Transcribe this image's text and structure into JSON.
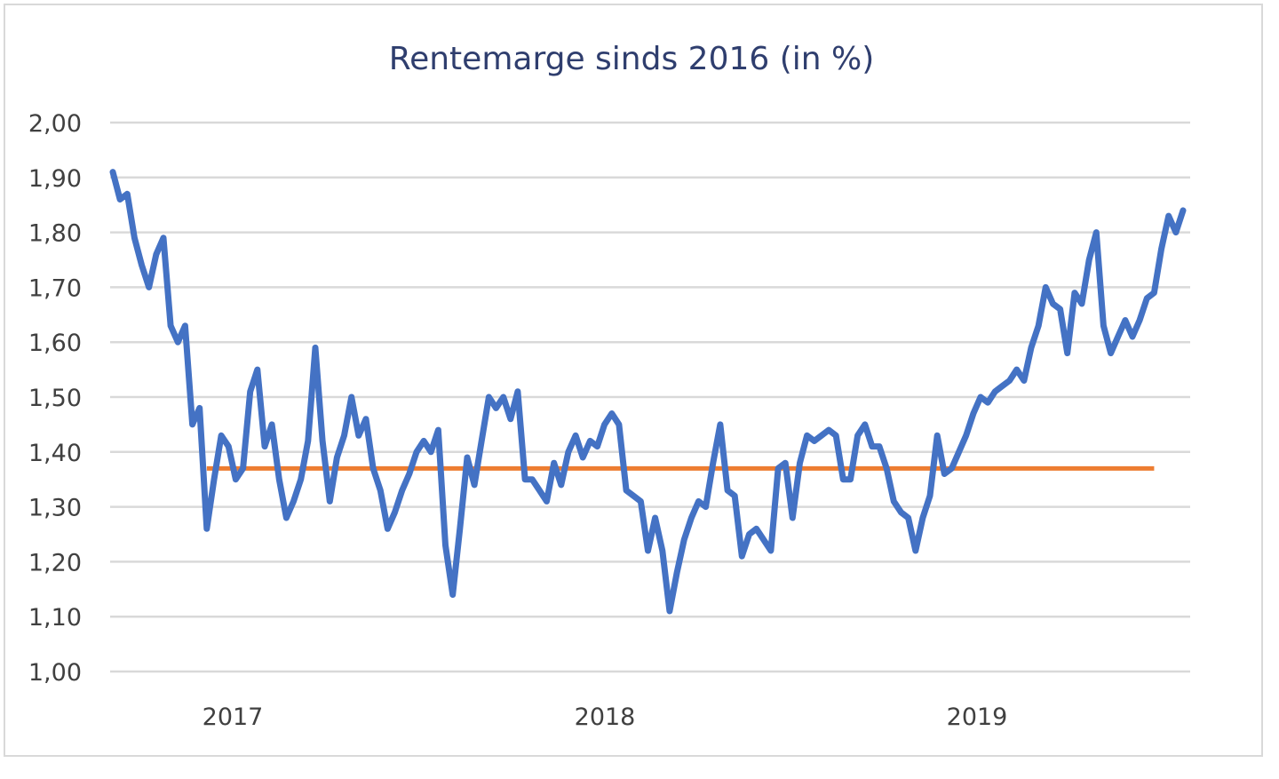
{
  "chart_data": {
    "type": "line",
    "title": "Rentemarge sinds 2016 (in %)",
    "xlabel": "",
    "ylabel": "",
    "ylim": [
      1.0,
      2.0
    ],
    "ytick_labels": [
      "1,00",
      "1,10",
      "1,20",
      "1,30",
      "1,40",
      "1,50",
      "1,60",
      "1,70",
      "1,80",
      "1,90",
      "2,00"
    ],
    "xtick_labels": [
      "2017",
      "2018",
      "2019"
    ],
    "grid": "horizontal",
    "legend": "none",
    "colors": {
      "series": "#4472c4",
      "reference": "#ed7d31",
      "grid": "#d9d9d9",
      "title": "#2f3e6e"
    },
    "series": [
      {
        "values": [
          1.91,
          1.86,
          1.87,
          1.79,
          1.74,
          1.7,
          1.76,
          1.79,
          1.63,
          1.6,
          1.63,
          1.45,
          1.48,
          1.26,
          1.35,
          1.43,
          1.41,
          1.35,
          1.37,
          1.51,
          1.55,
          1.41,
          1.45,
          1.35,
          1.28,
          1.31,
          1.35,
          1.42,
          1.59,
          1.42,
          1.31,
          1.39,
          1.43,
          1.5,
          1.43,
          1.46,
          1.37,
          1.33,
          1.26,
          1.29,
          1.33,
          1.36,
          1.4,
          1.42,
          1.4,
          1.44,
          1.23,
          1.14,
          1.26,
          1.39,
          1.34,
          1.42,
          1.5,
          1.48,
          1.5,
          1.46,
          1.51,
          1.35,
          1.35,
          1.33,
          1.31,
          1.38,
          1.34,
          1.4,
          1.43,
          1.39,
          1.42,
          1.41,
          1.45,
          1.47,
          1.45,
          1.33,
          1.32,
          1.31,
          1.22,
          1.28,
          1.22,
          1.11,
          1.18,
          1.24,
          1.28,
          1.31,
          1.3,
          1.38,
          1.45,
          1.33,
          1.32,
          1.21,
          1.25,
          1.26,
          1.24,
          1.22,
          1.37,
          1.38,
          1.28,
          1.38,
          1.43,
          1.42,
          1.43,
          1.44,
          1.43,
          1.35,
          1.35,
          1.43,
          1.45,
          1.41,
          1.41,
          1.37,
          1.31,
          1.29,
          1.28,
          1.22,
          1.28,
          1.32,
          1.43,
          1.36,
          1.37,
          1.4,
          1.43,
          1.47,
          1.5,
          1.49,
          1.51,
          1.52,
          1.53,
          1.55,
          1.53,
          1.59,
          1.63,
          1.7,
          1.67,
          1.66,
          1.58,
          1.69,
          1.67,
          1.75,
          1.8,
          1.63,
          1.58,
          1.61,
          1.64,
          1.61,
          1.64,
          1.68,
          1.69,
          1.77,
          1.83,
          1.8,
          1.84
        ]
      }
    ],
    "reference_line": {
      "value": 1.37,
      "start_index": 13,
      "end_index": 144
    }
  }
}
